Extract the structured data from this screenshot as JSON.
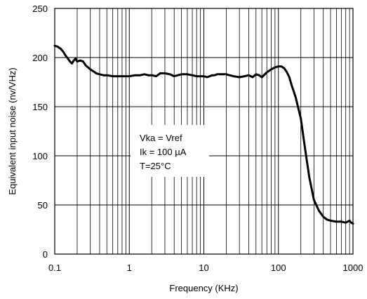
{
  "chart_data": {
    "type": "line",
    "title": "",
    "xlabel": "Frequency (KHz)",
    "ylabel": "Equivalent input noise (nv/VHz)",
    "xscale": "log",
    "xlim": [
      0.1,
      1000
    ],
    "ylim": [
      0,
      250
    ],
    "grid": true,
    "x_ticks": [
      0.1,
      1,
      10,
      100,
      1000
    ],
    "x_tick_labels": [
      "0.1",
      "1",
      "10",
      "100",
      "1000"
    ],
    "y_ticks": [
      0,
      50,
      100,
      150,
      200,
      250
    ],
    "y_tick_labels": [
      "0",
      "50",
      "100",
      "150",
      "200",
      "250"
    ],
    "annotations": [
      "Vka = Vref",
      "Ik = 100 µA",
      "T=25°C"
    ],
    "series": [
      {
        "x": [
          0.1,
          0.11,
          0.12,
          0.13,
          0.14,
          0.15,
          0.16,
          0.17,
          0.18,
          0.19,
          0.2,
          0.22,
          0.24,
          0.26,
          0.28,
          0.3,
          0.33,
          0.36,
          0.4,
          0.45,
          0.5,
          0.6,
          0.7,
          0.8,
          0.9,
          1,
          1.2,
          1.4,
          1.6,
          1.8,
          2,
          2.3,
          2.6,
          3,
          3.5,
          4,
          4.5,
          5,
          6,
          7,
          8,
          9,
          10,
          11,
          12,
          13,
          14,
          15,
          17,
          20,
          22,
          25,
          30,
          35,
          40,
          45,
          50,
          55,
          60,
          70,
          80,
          90,
          100,
          110,
          120,
          130,
          140,
          150,
          170,
          200,
          230,
          260,
          300,
          350,
          400,
          450,
          500,
          600,
          700,
          800,
          900,
          950,
          1000
        ],
        "y": [
          212,
          211,
          209,
          206,
          202,
          199,
          196,
          194,
          197,
          199,
          196,
          197,
          196,
          192,
          190,
          188,
          186,
          184,
          183,
          182,
          182,
          181,
          181,
          181,
          181,
          181,
          182,
          182,
          183,
          182,
          182,
          181,
          184,
          184,
          183,
          181,
          182,
          183,
          183,
          182,
          181,
          181,
          181,
          180,
          181,
          182,
          182,
          183,
          183,
          183,
          182,
          181,
          180,
          181,
          182,
          180,
          183,
          182,
          180,
          185,
          188,
          190,
          191,
          191,
          189,
          185,
          180,
          172,
          160,
          138,
          105,
          78,
          55,
          44,
          38,
          35,
          34,
          33,
          33,
          32,
          34,
          32,
          31
        ]
      }
    ]
  }
}
